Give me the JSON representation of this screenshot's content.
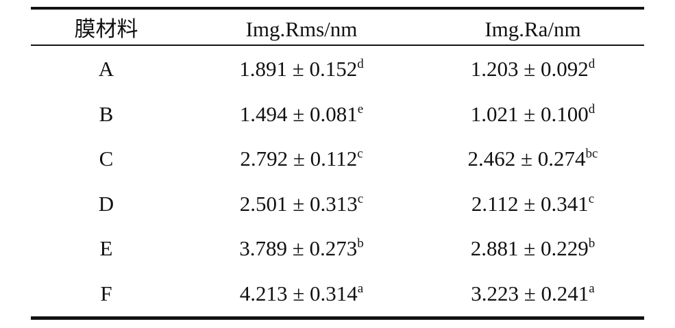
{
  "table": {
    "header": [
      "膜材料",
      "Img.Rms/nm",
      "Img.Ra/nm"
    ],
    "rows": [
      {
        "material": "A",
        "rms": "1.891 ± 0.152",
        "rms_sig": "d",
        "ra": "1.203 ± 0.092",
        "ra_sig": "d"
      },
      {
        "material": "B",
        "rms": "1.494 ± 0.081",
        "rms_sig": "e",
        "ra": "1.021 ± 0.100",
        "ra_sig": "d"
      },
      {
        "material": "C",
        "rms": "2.792 ± 0.112",
        "rms_sig": "c",
        "ra": "2.462 ± 0.274",
        "ra_sig": "bc"
      },
      {
        "material": "D",
        "rms": "2.501 ± 0.313",
        "rms_sig": "c",
        "ra": "2.112 ± 0.341",
        "ra_sig": "c"
      },
      {
        "material": "E",
        "rms": "3.789 ± 0.273",
        "rms_sig": "b",
        "ra": "2.881 ± 0.229",
        "ra_sig": "b"
      },
      {
        "material": "F",
        "rms": "4.213 ± 0.314",
        "rms_sig": "a",
        "ra": "3.223 ± 0.241",
        "ra_sig": "a"
      }
    ]
  }
}
